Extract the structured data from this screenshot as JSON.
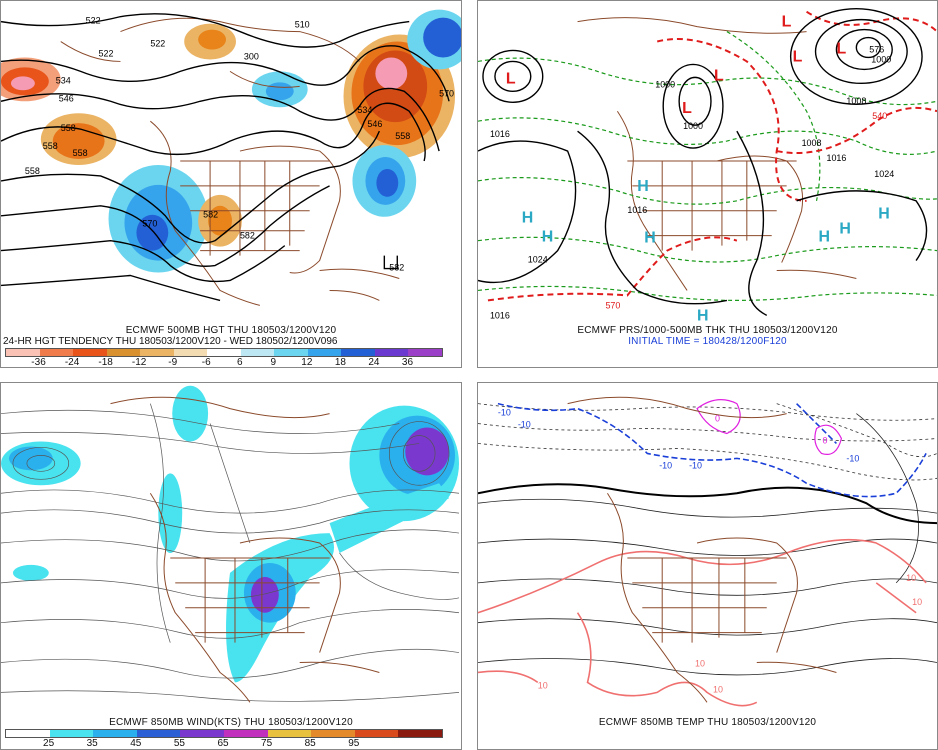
{
  "panels": {
    "top_left": {
      "caption_line1": "ECMWF 500MB HGT THU 180503/1200V120",
      "caption_line2": "24-HR HGT TENDENCY THU 180503/1200V120 - WED 180502/1200V096",
      "colorbar_colors": [
        "#f9c2b4",
        "#ef7c4a",
        "#e8541a",
        "#d9902e",
        "#ebb465",
        "#f3dcb1",
        "#ffffff",
        "#bde7f3",
        "#6bd5ef",
        "#36a4ec",
        "#2360d6",
        "#6a3ad0",
        "#9b3fc8"
      ],
      "colorbar_ticks": [
        "-36",
        "-24",
        "-18",
        "-12",
        "-9",
        "-6",
        "6",
        "9",
        "12",
        "18",
        "24",
        "36"
      ],
      "contour_labels": [
        "522",
        "522",
        "522",
        "510",
        "534",
        "546",
        "558",
        "558",
        "558",
        "558",
        "570",
        "582",
        "582",
        "582",
        "534",
        "546",
        "558",
        "570",
        "300"
      ]
    },
    "top_right": {
      "caption_line1": "ECMWF PRS/1000-500MB THK THU 180503/1200V120",
      "caption_line2": "INITIAL TIME = 180428/1200F120",
      "pressure_centers": [
        "L",
        "L",
        "L",
        "L",
        "L",
        "L",
        "H",
        "H",
        "H",
        "H",
        "H",
        "H",
        "H",
        "H"
      ],
      "contour_labels": [
        "1016",
        "1024",
        "1016",
        "1000",
        "1000",
        "1008",
        "1016",
        "1024",
        "1008",
        "1000",
        "570",
        "540",
        "576",
        "1016"
      ]
    },
    "bottom_left": {
      "caption": "ECMWF 850MB WIND(KTS) THU 180503/1200V120",
      "colorbar_colors": [
        "#ffffff",
        "#49e3ef",
        "#2bb0ee",
        "#2a5fd6",
        "#7b38cf",
        "#c12fbd",
        "#e8c23e",
        "#e58a2a",
        "#d94a1d",
        "#8a1a10"
      ],
      "colorbar_ticks": [
        "25",
        "35",
        "45",
        "55",
        "65",
        "75",
        "85",
        "95"
      ]
    },
    "bottom_right": {
      "caption": "ECMWF 850MB TEMP THU 180503/1200V120",
      "contour_labels": [
        "-10",
        "-10",
        "-10",
        "-10",
        "-10",
        "0",
        "0",
        "10",
        "10",
        "10",
        "10",
        "10"
      ]
    }
  },
  "colors": {
    "coast": "#8b4a2b",
    "height_contour": "#000000",
    "thickness_warm": "#e01b1b",
    "thickness_cold": "#1a9a1a",
    "high_marker": "#2aa8c4",
    "low_marker": "#e01b1b",
    "cold_isotherm": "#1a3fd8",
    "freezing": "#e020e0",
    "warm_isotherm": "#f07070"
  }
}
